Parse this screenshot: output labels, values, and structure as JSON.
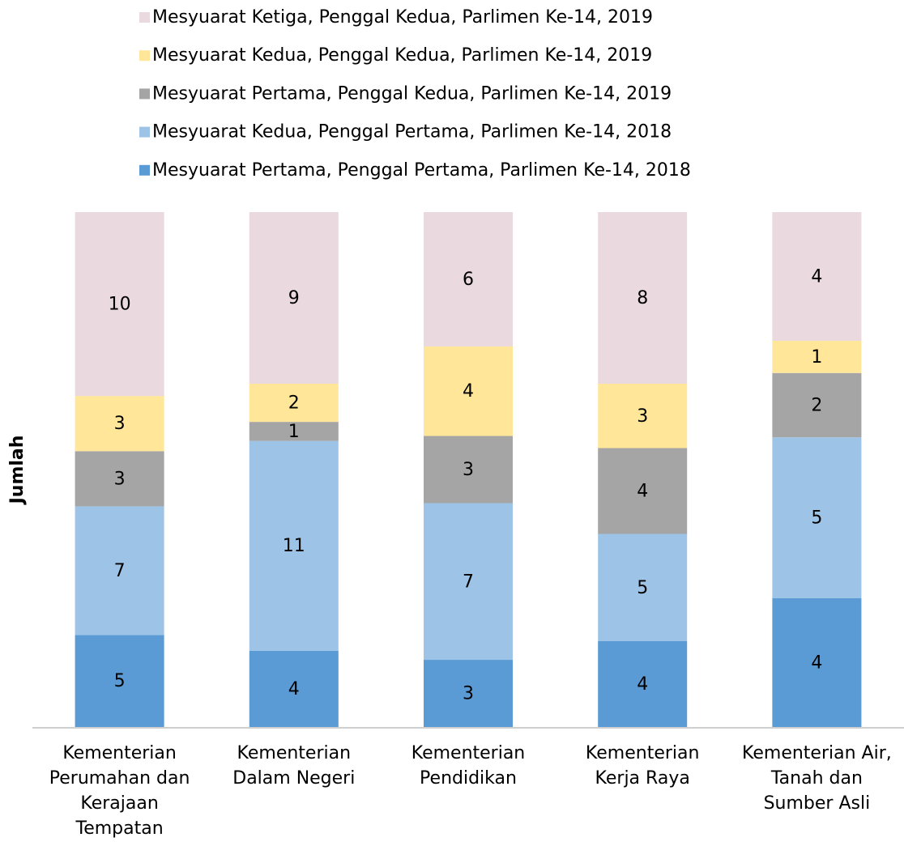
{
  "chart_data": {
    "type": "bar",
    "stacked": "percent",
    "y_label": "Jumlah",
    "categories": [
      "Kementerian Perumahan dan Kerajaan Tempatan",
      "Kementerian Dalam Negeri",
      "Kementerian Pendidikan",
      "Kementerian Kerja Raya",
      "Kementerian Air, Tanah dan Sumber Asli"
    ],
    "series": [
      {
        "name": "Mesyuarat Pertama, Penggal Pertama, Parlimen Ke-14, 2018",
        "color": "#5b9bd5",
        "values": [
          5,
          4,
          3,
          4,
          4
        ]
      },
      {
        "name": "Mesyuarat Kedua, Penggal Pertama, Parlimen Ke-14, 2018",
        "color": "#9dc3e6",
        "values": [
          7,
          11,
          7,
          5,
          5
        ]
      },
      {
        "name": "Mesyuarat Pertama, Penggal Kedua, Parlimen Ke-14, 2019",
        "color": "#a5a5a5",
        "values": [
          3,
          1,
          3,
          4,
          2
        ]
      },
      {
        "name": "Mesyuarat Kedua, Penggal Kedua, Parlimen Ke-14, 2019",
        "color": "#ffe699",
        "values": [
          3,
          2,
          4,
          3,
          1
        ]
      },
      {
        "name": "Mesyuarat Ketiga, Penggal Kedua, Parlimen Ke-14, 2019",
        "color": "#ead9df",
        "values": [
          10,
          9,
          6,
          8,
          4
        ]
      }
    ],
    "legend": "top"
  }
}
